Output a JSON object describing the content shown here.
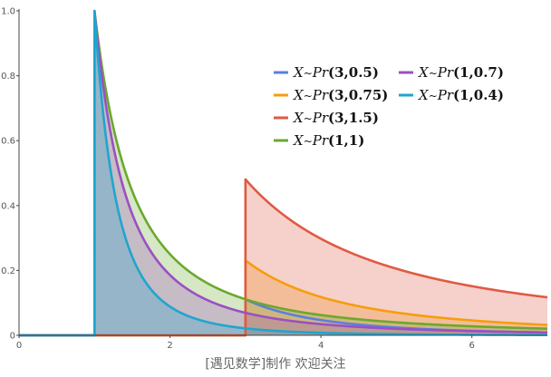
{
  "chart_data": {
    "type": "area",
    "title": "",
    "xlabel": "",
    "ylabel": "",
    "xlim": [
      0,
      7
    ],
    "ylim": [
      0,
      1.0
    ],
    "x_ticks": [
      "0",
      "2",
      "4",
      "6"
    ],
    "y_ticks": [
      "0",
      "0.2",
      "0.4",
      "0.6",
      "0.8",
      "1.0"
    ],
    "grid": false,
    "legend_position": "top-right",
    "series": [
      {
        "name": "X~Pr(3,0.5)",
        "label_parts": {
          "X": "X",
          "sep": "~",
          "fn": "Pr",
          "args": "(3,0.5)"
        },
        "scale": 3,
        "shape": 0.5,
        "color": "#5B7FE0",
        "fill": false
      },
      {
        "name": "X~Pr(3,0.75)",
        "label_parts": {
          "X": "X",
          "sep": "~",
          "fn": "Pr",
          "args": "(3,0.75)"
        },
        "scale": 3,
        "shape": 0.75,
        "color": "#F59E0B",
        "fill": true
      },
      {
        "name": "X~Pr(3,1.5)",
        "label_parts": {
          "X": "X",
          "sep": "~",
          "fn": "Pr",
          "args": "(3,1.5)"
        },
        "scale": 3,
        "shape": 1.5,
        "color": "#E05A43",
        "fill": true
      },
      {
        "name": "X~Pr(1,1)",
        "label_parts": {
          "X": "X",
          "sep": "~",
          "fn": "Pr",
          "args": "(1,1)"
        },
        "scale": 1,
        "shape": 1,
        "color": "#6BA82E",
        "fill": true
      },
      {
        "name": "X~Pr(1,0.7)",
        "label_parts": {
          "X": "X",
          "sep": "~",
          "fn": "Pr",
          "args": "(1,0.7)"
        },
        "scale": 1,
        "shape": 0.7,
        "color": "#9B4FC4",
        "fill": true
      },
      {
        "name": "X~Pr(1,0.4)",
        "label_parts": {
          "X": "X",
          "sep": "~",
          "fn": "Pr",
          "args": "(1,0.4)"
        },
        "scale": 1,
        "shape": 0.4,
        "color": "#1FA5CF",
        "fill": true
      }
    ],
    "caption": "[遇见数学]制作    欢迎关注"
  }
}
